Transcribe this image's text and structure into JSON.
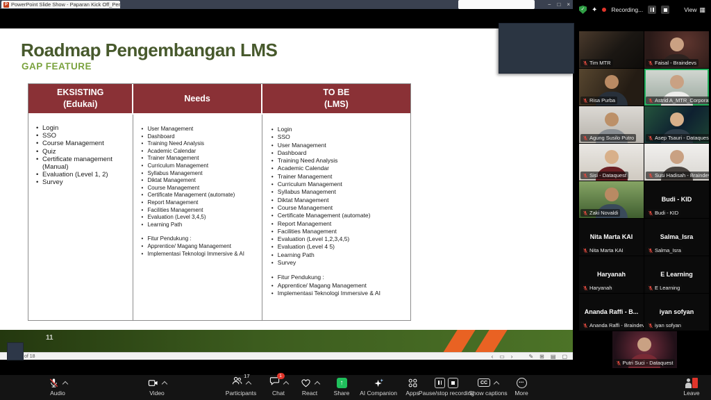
{
  "window": {
    "title": "PowerPoint Slide Show  -  Paparan Kick Off_Penyusuna",
    "app_icon_letter": "P",
    "controls": {
      "minimize": "−",
      "restore": "□",
      "close": "×"
    }
  },
  "tray": {
    "recording_label": "Recording...",
    "view_label": "View"
  },
  "slide": {
    "title": "Roadmap Pengembangan LMS",
    "subtitle": "GAP FEATURE",
    "page_number": "11",
    "status_text": "of 18",
    "table": {
      "columns": [
        {
          "header_line1": "EKSISTING",
          "header_line2": "(Edukai)",
          "items": [
            "Login",
            "SSO",
            "Course Management",
            "Quiz",
            "Certificate management (Manual)",
            "Evaluation (Level 1, 2)",
            "Survey"
          ]
        },
        {
          "header_line1": "Needs",
          "header_line2": "",
          "items": [
            "User Management",
            "Dashboard",
            "Training Need Analysis",
            "Academic Calendar",
            "Trainer Management",
            "Curriculum Management",
            "Syllabus Management",
            "Diktat Management",
            "Course Management",
            "Certificate Management (automate)",
            "Report Management",
            "Facilities Management",
            "Evaluation (Level 3,4,5)",
            "Learning Path",
            "",
            "Fitur Pendukung :",
            "Apprentice/ Magang Management",
            "Implementasi Teknologi Immersive & AI"
          ]
        },
        {
          "header_line1": "TO BE",
          "header_line2": "(LMS)",
          "items": [
            "Login",
            "SSO",
            "User Management",
            "Dashboard",
            "Training Need Analysis",
            "Academic Calendar",
            "Trainer Management",
            "Curriculum Management",
            "Syllabus Management",
            "Diktat Management",
            "Course Management",
            "Certificate Management (automate)",
            "Report Management",
            "Facilities Management",
            "Evaluation (Level 1,2,3,4,5)",
            "Evaluation (Level 4 5)",
            "Learning Path",
            "Survey",
            "",
            "Fitur Pendukung :",
            "Apprentice/ Magang Management",
            "Implementasi Teknologi Immersive & AI"
          ]
        }
      ]
    }
  },
  "gallery": {
    "tiles": [
      {
        "label": "Tim MTR",
        "variant": "timmtr"
      },
      {
        "label": "Faisal - Braindevs",
        "variant": "faisal"
      },
      {
        "label": "Risa Purba",
        "variant": "risa"
      },
      {
        "label": "Astrid A_MTR_Corporate U...",
        "variant": "astrid",
        "active": true
      },
      {
        "label": "Agung Susilo Putro",
        "variant": "agung"
      },
      {
        "label": "Asep Tsauri - Dataquest",
        "variant": "asep"
      },
      {
        "label": "Sisi - Dataquest",
        "variant": "sisi"
      },
      {
        "label": "Susi Hadisah - Braindevs",
        "variant": "susi"
      },
      {
        "label": "Zaki Novaldi",
        "variant": "zaki"
      },
      {
        "label": "Budi - KID",
        "center": "Budi - KID",
        "variant": "name"
      },
      {
        "label": "Nita Marta KAI",
        "center": "Nita Marta KAI",
        "variant": "name"
      },
      {
        "label": "Salma_Isra",
        "center": "Salma_Isra",
        "variant": "name"
      },
      {
        "label": "Haryanah",
        "center": "Haryanah",
        "variant": "name"
      },
      {
        "label": "E Learning",
        "center": "E Learning",
        "variant": "name"
      },
      {
        "label": "Ananda Raffi - Braindevs",
        "center": "Ananda Raffi - B...",
        "variant": "name"
      },
      {
        "label": "iyan sofyan",
        "center": "iyan sofyan",
        "variant": "name"
      },
      {
        "label": "Putri Suci - Dataquest",
        "variant": "putri",
        "solo": true
      }
    ]
  },
  "toolbar": {
    "audio": "Audio",
    "video": "Video",
    "participants": "Participants",
    "participants_count": "17",
    "chat": "Chat",
    "chat_badge": "1",
    "react": "React",
    "share": "Share",
    "ai_companion": "AI Companion",
    "apps": "Apps",
    "record": "Pause/stop recording",
    "captions": "Show captions",
    "more": "More",
    "leave": "Leave"
  },
  "icons": {
    "share_arrow": "↑",
    "view_grid": "▦",
    "shield_check": "✓",
    "sparkle": "✦",
    "prev": "‹",
    "next": "›",
    "slide_glyph": "▭",
    "pen_glyph": "✎",
    "grid_glyph": "⊞",
    "notes_glyph": "▤",
    "display_glyph": "▢",
    "cc": "CC",
    "dots": "•••"
  },
  "colors": {
    "table_header": "#8a3136",
    "title_green": "#47592c",
    "subtitle_green": "#7aa23e",
    "active_speaker_border": "#23b35f",
    "share_green": "#20c05c",
    "record_red": "#e0352b",
    "stripe_orange": "#e96223"
  }
}
